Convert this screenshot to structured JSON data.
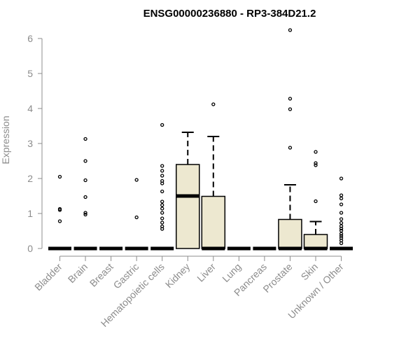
{
  "chart_data": {
    "type": "box",
    "title": "ENSG00000236880 - RP3-384D21.2",
    "xlabel": "",
    "ylabel": "Expression",
    "ylim": [
      0,
      6.3
    ],
    "yticks": [
      0,
      1,
      2,
      3,
      4,
      5,
      6
    ],
    "grid": false,
    "box_color": "#ede8d0",
    "outline_color": "#000000",
    "axis_color": "#8c8c8c",
    "categories": [
      "Bladder",
      "Brain",
      "Breast",
      "Gastric",
      "Hematopoietic cells",
      "Kidney",
      "Liver",
      "Lung",
      "Pancreas",
      "Prostate",
      "Skin",
      "Unknown / Other"
    ],
    "boxes": [
      {
        "category": "Bladder",
        "min": 0,
        "q1": 0,
        "median": 0,
        "q3": 0,
        "max": 0,
        "outliers": [
          2.05,
          1.13,
          1.1,
          0.78
        ]
      },
      {
        "category": "Brain",
        "min": 0,
        "q1": 0,
        "median": 0,
        "q3": 0,
        "max": 0,
        "outliers": [
          3.13,
          2.5,
          1.95,
          1.47,
          1.02,
          0.97
        ]
      },
      {
        "category": "Breast",
        "min": 0,
        "q1": 0,
        "median": 0,
        "q3": 0,
        "max": 0,
        "outliers": []
      },
      {
        "category": "Gastric",
        "min": 0,
        "q1": 0,
        "median": 0,
        "q3": 0,
        "max": 0,
        "outliers": [
          1.96,
          0.89
        ]
      },
      {
        "category": "Hematopoietic cells",
        "min": 0,
        "q1": 0,
        "median": 0,
        "q3": 0,
        "max": 0,
        "outliers": [
          3.53,
          2.36,
          2.22,
          2.08,
          1.93,
          1.86,
          1.63,
          1.34,
          1.24,
          1.14,
          1.02,
          0.86,
          0.74,
          0.63,
          0.56
        ]
      },
      {
        "category": "Kidney",
        "min": 0,
        "q1": 0,
        "median": 1.5,
        "q3": 2.4,
        "max": 3.32,
        "outliers": []
      },
      {
        "category": "Liver",
        "min": 0,
        "q1": 0,
        "median": 0,
        "q3": 1.49,
        "max": 3.2,
        "outliers": [
          4.12
        ]
      },
      {
        "category": "Lung",
        "min": 0,
        "q1": 0,
        "median": 0,
        "q3": 0,
        "max": 0,
        "outliers": []
      },
      {
        "category": "Pancreas",
        "min": 0,
        "q1": 0,
        "median": 0,
        "q3": 0,
        "max": 0,
        "outliers": []
      },
      {
        "category": "Prostate",
        "min": 0,
        "q1": 0,
        "median": 0,
        "q3": 0.83,
        "max": 1.82,
        "outliers": [
          6.24,
          4.28,
          3.98,
          2.88
        ]
      },
      {
        "category": "Skin",
        "min": 0,
        "q1": 0,
        "median": 0,
        "q3": 0.4,
        "max": 0.77,
        "outliers": [
          2.76,
          2.44,
          2.38,
          1.35
        ]
      },
      {
        "category": "Unknown / Other",
        "min": 0,
        "q1": 0,
        "median": 0,
        "q3": 0,
        "max": 0,
        "outliers": [
          2.0,
          1.52,
          1.43,
          1.26,
          1.02,
          0.84,
          0.73,
          0.64,
          0.57,
          0.51,
          0.42,
          0.36,
          0.3,
          0.23,
          0.15
        ]
      }
    ]
  }
}
